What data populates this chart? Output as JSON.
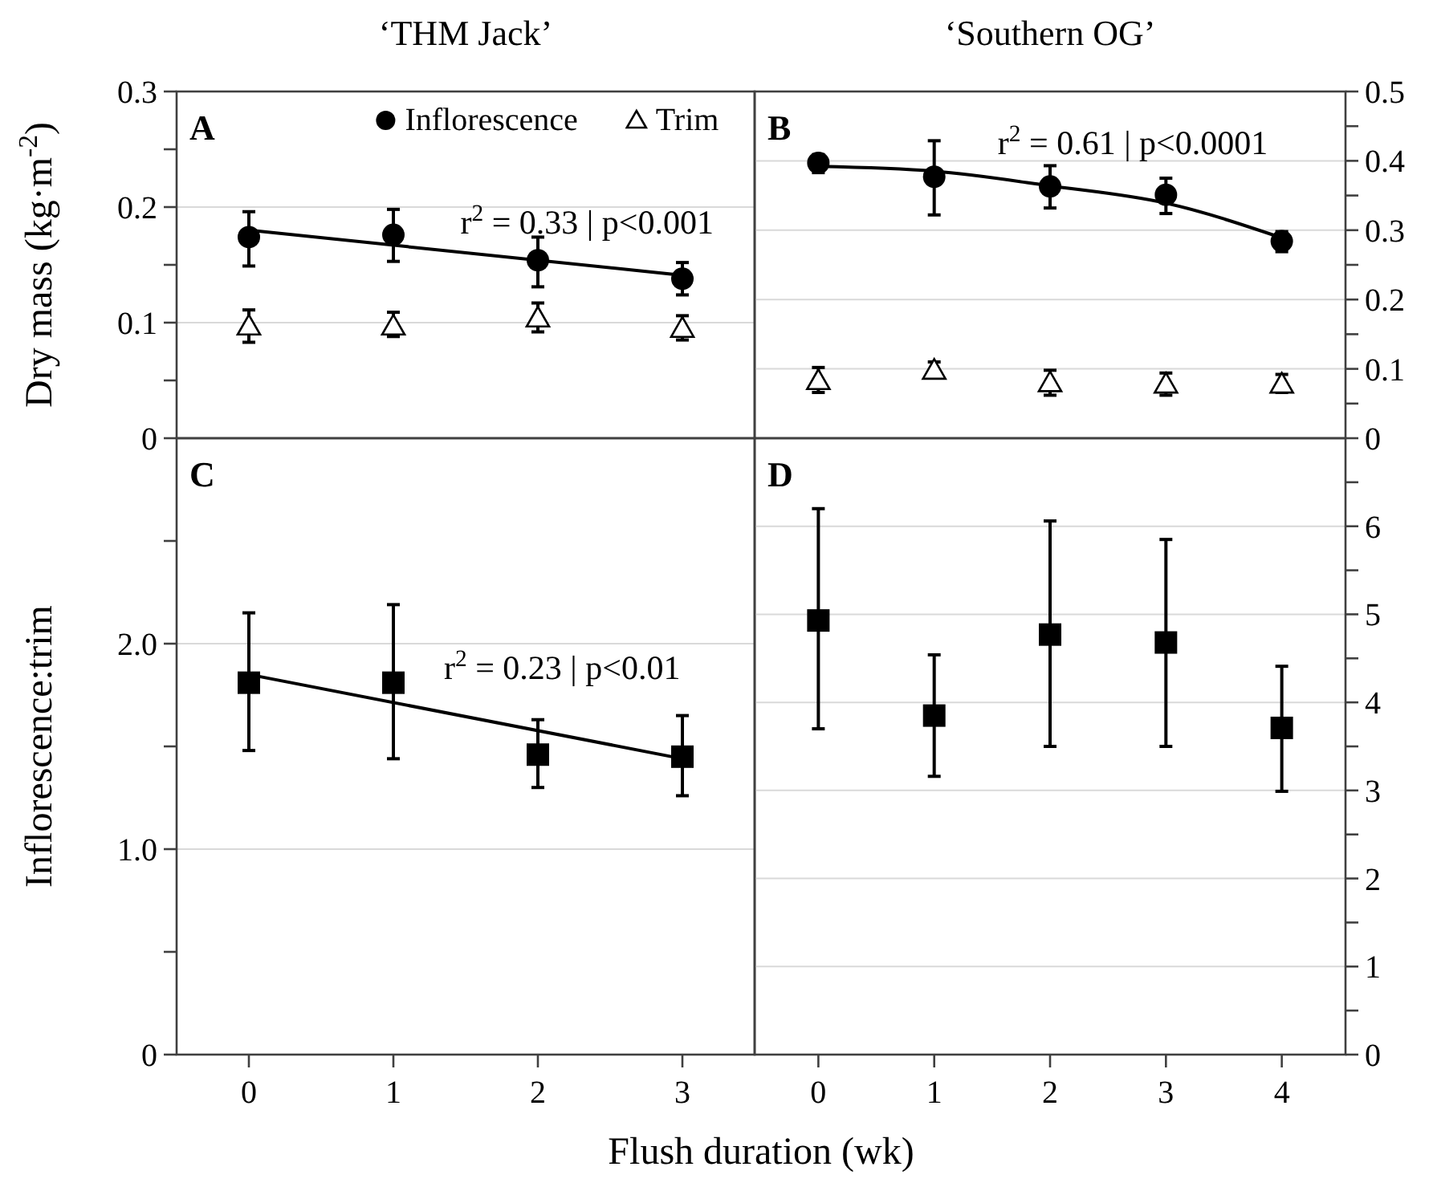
{
  "chart_data": [
    {
      "type": "scatter",
      "title": "‘THM Jack’",
      "ylabel": "Dry mass (kg·m$^{-2}$)",
      "x": [
        0,
        1,
        2,
        3
      ],
      "xlim": [
        -0.5,
        3.5
      ],
      "xticks": [
        0,
        1,
        2,
        3
      ],
      "ylim": [
        0,
        0.3
      ],
      "yticks": [
        0,
        {
          "value": 0.05,
          "label": null
        },
        0.1,
        {
          "value": 0.15,
          "label": null
        },
        0.2,
        {
          "value": 0.25,
          "label": null
        },
        0.3
      ],
      "tick_labels": "y",
      "grid": "y",
      "legend": "top right",
      "series": [
        {
          "name": "Inflorescence",
          "marker": "circle",
          "color": "#000000",
          "values": [
            0.174,
            0.176,
            0.154,
            0.138
          ],
          "errors": [
            [
              0.149,
              0.196
            ],
            [
              0.153,
              0.198
            ],
            [
              0.131,
              0.174
            ],
            [
              0.124,
              0.152
            ]
          ]
        },
        {
          "name": "Trim",
          "marker": "triangle",
          "color": "#000000",
          "values": [
            0.097,
            0.097,
            0.104,
            0.095
          ],
          "errors": [
            [
              0.083,
              0.111
            ],
            [
              0.088,
              0.109
            ],
            [
              0.092,
              0.117
            ],
            [
              0.085,
              0.106
            ]
          ]
        },
        {
          "type": "line",
          "marker": "none",
          "color": "#000000",
          "x": [
            0,
            3
          ],
          "values": [
            0.18,
            0.141
          ]
        }
      ],
      "annotations": [
        "A",
        "r$^{2}$ = 0.33 | p<0.001"
      ]
    },
    {
      "type": "scatter",
      "title": "‘Southern OG’",
      "x": [
        0,
        1,
        2,
        3,
        4
      ],
      "xlim": [
        -0.55,
        4.55
      ],
      "xticks": [
        0,
        1,
        2,
        3,
        4
      ],
      "ylim": [
        0,
        0.5
      ],
      "yticks": [
        0,
        {
          "value": 0.05,
          "label": null
        },
        0.1,
        {
          "value": 0.15,
          "label": null
        },
        0.2,
        {
          "value": 0.25,
          "label": null
        },
        0.3,
        {
          "value": 0.35,
          "label": null
        },
        0.4,
        {
          "value": 0.45,
          "label": null
        },
        0.5
      ],
      "tick_labels": "y",
      "grid": "y",
      "series": [
        {
          "marker": "circle",
          "color": "#000000",
          "values": [
            0.397,
            0.377,
            0.363,
            0.351,
            0.284
          ],
          "errors": [
            [
              0.383,
              0.409
            ],
            [
              0.322,
              0.429
            ],
            [
              0.332,
              0.393
            ],
            [
              0.324,
              0.375
            ],
            [
              0.269,
              0.298
            ]
          ]
        },
        {
          "marker": "triangle",
          "color": "#000000",
          "values": [
            0.083,
            0.098,
            0.08,
            0.078,
            0.078
          ],
          "errors": [
            [
              0.066,
              0.102
            ],
            [
              0.088,
              0.11
            ],
            [
              0.062,
              0.098
            ],
            [
              0.062,
              0.094
            ],
            [
              0.066,
              0.092
            ]
          ]
        },
        {
          "type": "line",
          "marker": "none",
          "color": "#000000",
          "x": [
            0,
            1,
            2,
            3,
            4
          ],
          "values": [
            0.392,
            0.385,
            0.364,
            0.339,
            0.289
          ]
        }
      ],
      "annotations": [
        "B",
        "r$^{2}$ = 0.61 | p<0.0001"
      ]
    },
    {
      "type": "scatter",
      "ylabel": "Inflorescence:trim",
      "xlabel": "Flush duration (wk)",
      "x": [
        0,
        1,
        2,
        3
      ],
      "xlim": [
        -0.5,
        3.5
      ],
      "xticks": [
        0,
        1,
        2,
        3
      ],
      "ylim": [
        0,
        3
      ],
      "yticks": [
        0,
        {
          "value": 0.5,
          "label": null
        },
        {
          "value": 1,
          "label": "1.0"
        },
        {
          "value": 1.5,
          "label": null
        },
        {
          "value": 2,
          "label": "2.0"
        },
        {
          "value": 2.5,
          "label": null
        }
      ],
      "grid": "y",
      "series": [
        {
          "marker": "square",
          "color": "#000000",
          "values": [
            1.81,
            1.81,
            1.46,
            1.45
          ],
          "errors": [
            [
              1.48,
              2.15
            ],
            [
              1.44,
              2.19
            ],
            [
              1.3,
              1.63
            ],
            [
              1.26,
              1.65
            ]
          ]
        },
        {
          "type": "line",
          "marker": "none",
          "color": "#000000",
          "x": [
            0,
            3
          ],
          "values": [
            1.85,
            1.44
          ]
        }
      ],
      "annotations": [
        "C",
        "r$^{2}$ = 0.23 | p<0.01"
      ]
    },
    {
      "type": "scatter",
      "x": [
        0,
        1,
        2,
        3,
        4
      ],
      "xlim": [
        -0.55,
        4.55
      ],
      "xticks": [
        0,
        1,
        2,
        3,
        4
      ],
      "ylim": [
        0,
        7
      ],
      "yticks": [
        0,
        {
          "value": 0.5,
          "label": null
        },
        1,
        {
          "value": 1.5,
          "label": null
        },
        2,
        {
          "value": 2.5,
          "label": null
        },
        3,
        {
          "value": 3.5,
          "label": null
        },
        4,
        {
          "value": 4.5,
          "label": null
        },
        5,
        {
          "value": 5.5,
          "label": null
        },
        6,
        {
          "value": 6.5,
          "label": null
        }
      ],
      "grid": "y",
      "series": [
        {
          "marker": "square",
          "color": "#000000",
          "values": [
            4.93,
            3.85,
            4.77,
            4.68,
            3.71
          ],
          "errors": [
            [
              3.7,
              6.2
            ],
            [
              3.16,
              4.54
            ],
            [
              3.5,
              6.06
            ],
            [
              3.5,
              5.85
            ],
            [
              2.99,
              4.41
            ]
          ]
        }
      ],
      "annotations": [
        "D"
      ]
    }
  ]
}
